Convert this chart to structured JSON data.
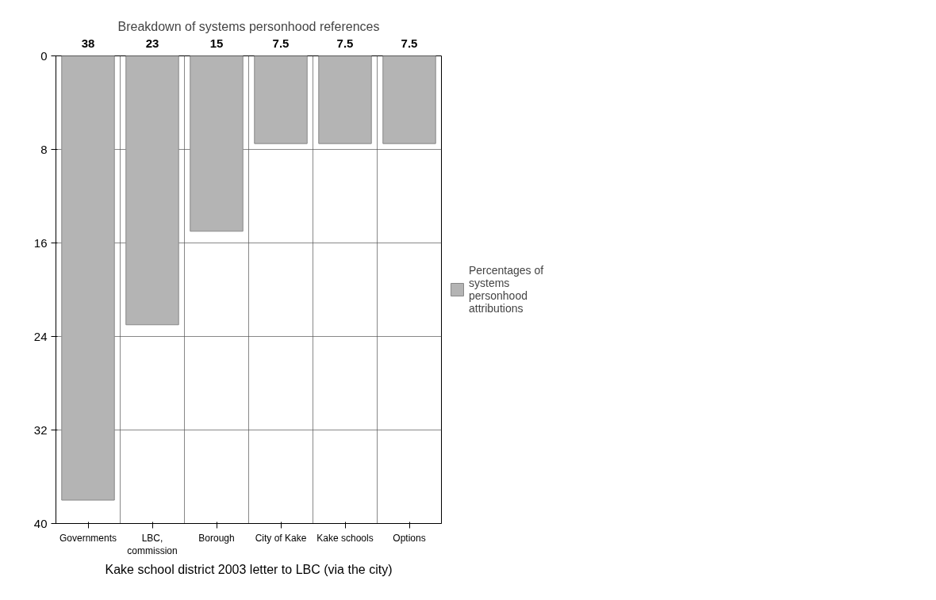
{
  "chart_data": {
    "type": "bar",
    "title": "Breakdown of systems personhood references",
    "xlabel": "Kake school district 2003 letter to LBC (via the city)",
    "categories": [
      "Governments",
      "LBC, commission",
      "Borough",
      "City of Kake",
      "Kake schools",
      "Options"
    ],
    "series": [
      {
        "name": "Percentages of systems personhood attributions",
        "color": "#b4b4b4",
        "values": [
          38,
          23,
          15,
          7.5,
          7.5,
          7.5
        ]
      }
    ],
    "ylim": [
      40,
      0
    ],
    "yticks": [
      0,
      8,
      16,
      24,
      32,
      40
    ],
    "grid": true,
    "legend": "right",
    "data_labels": true
  }
}
